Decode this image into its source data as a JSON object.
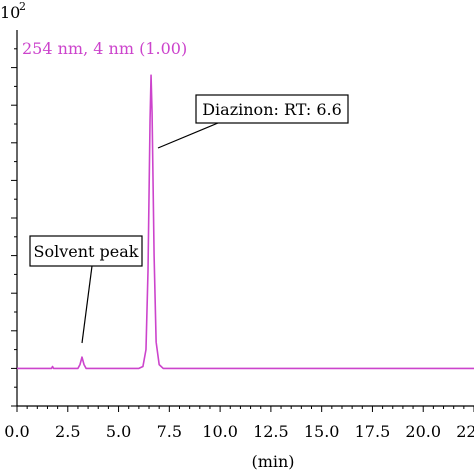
{
  "chart_data": {
    "type": "line",
    "title": "",
    "xlabel": "(min)",
    "ylabel": "",
    "y_multiplier_label": "10",
    "y_multiplier_exponent": "2",
    "xlim": [
      0.0,
      22.5
    ],
    "ylim": [
      -1.0,
      9.0
    ],
    "x_ticks": [
      "0.0",
      "2.5",
      "5.0",
      "7.5",
      "10.0",
      "12.5",
      "15.0",
      "17.5",
      "20.0",
      "22.5"
    ],
    "x_tick_values": [
      0.0,
      2.5,
      5.0,
      7.5,
      10.0,
      12.5,
      15.0,
      17.5,
      20.0,
      22.5
    ],
    "y_tick_values": [
      -1,
      0,
      1,
      2,
      3,
      4,
      5,
      6,
      7,
      8
    ],
    "grid": false,
    "series": [
      {
        "name": "254 nm, 4 nm (1.00)",
        "color": "#cc44cc",
        "x": [
          0.0,
          1.7,
          1.75,
          1.8,
          3.0,
          3.1,
          3.2,
          3.3,
          3.4,
          5.0,
          6.0,
          6.2,
          6.35,
          6.45,
          6.55,
          6.6,
          6.65,
          6.75,
          6.85,
          7.0,
          7.2,
          7.5,
          10.0,
          15.0,
          20.0,
          22.5
        ],
        "y": [
          0.0,
          0.0,
          0.05,
          0.0,
          0.0,
          0.1,
          0.3,
          0.1,
          0.0,
          0.0,
          0.0,
          0.05,
          0.5,
          2.6,
          6.6,
          7.8,
          6.8,
          3.0,
          0.7,
          0.1,
          0.0,
          0.0,
          0.0,
          0.0,
          0.0,
          0.0
        ]
      }
    ],
    "annotations": [
      {
        "text": "Solvent peak",
        "x": 3.2,
        "y": 0.3
      },
      {
        "text": "Diazinon: RT: 6.6",
        "x": 6.65,
        "y": 5.5
      }
    ]
  }
}
